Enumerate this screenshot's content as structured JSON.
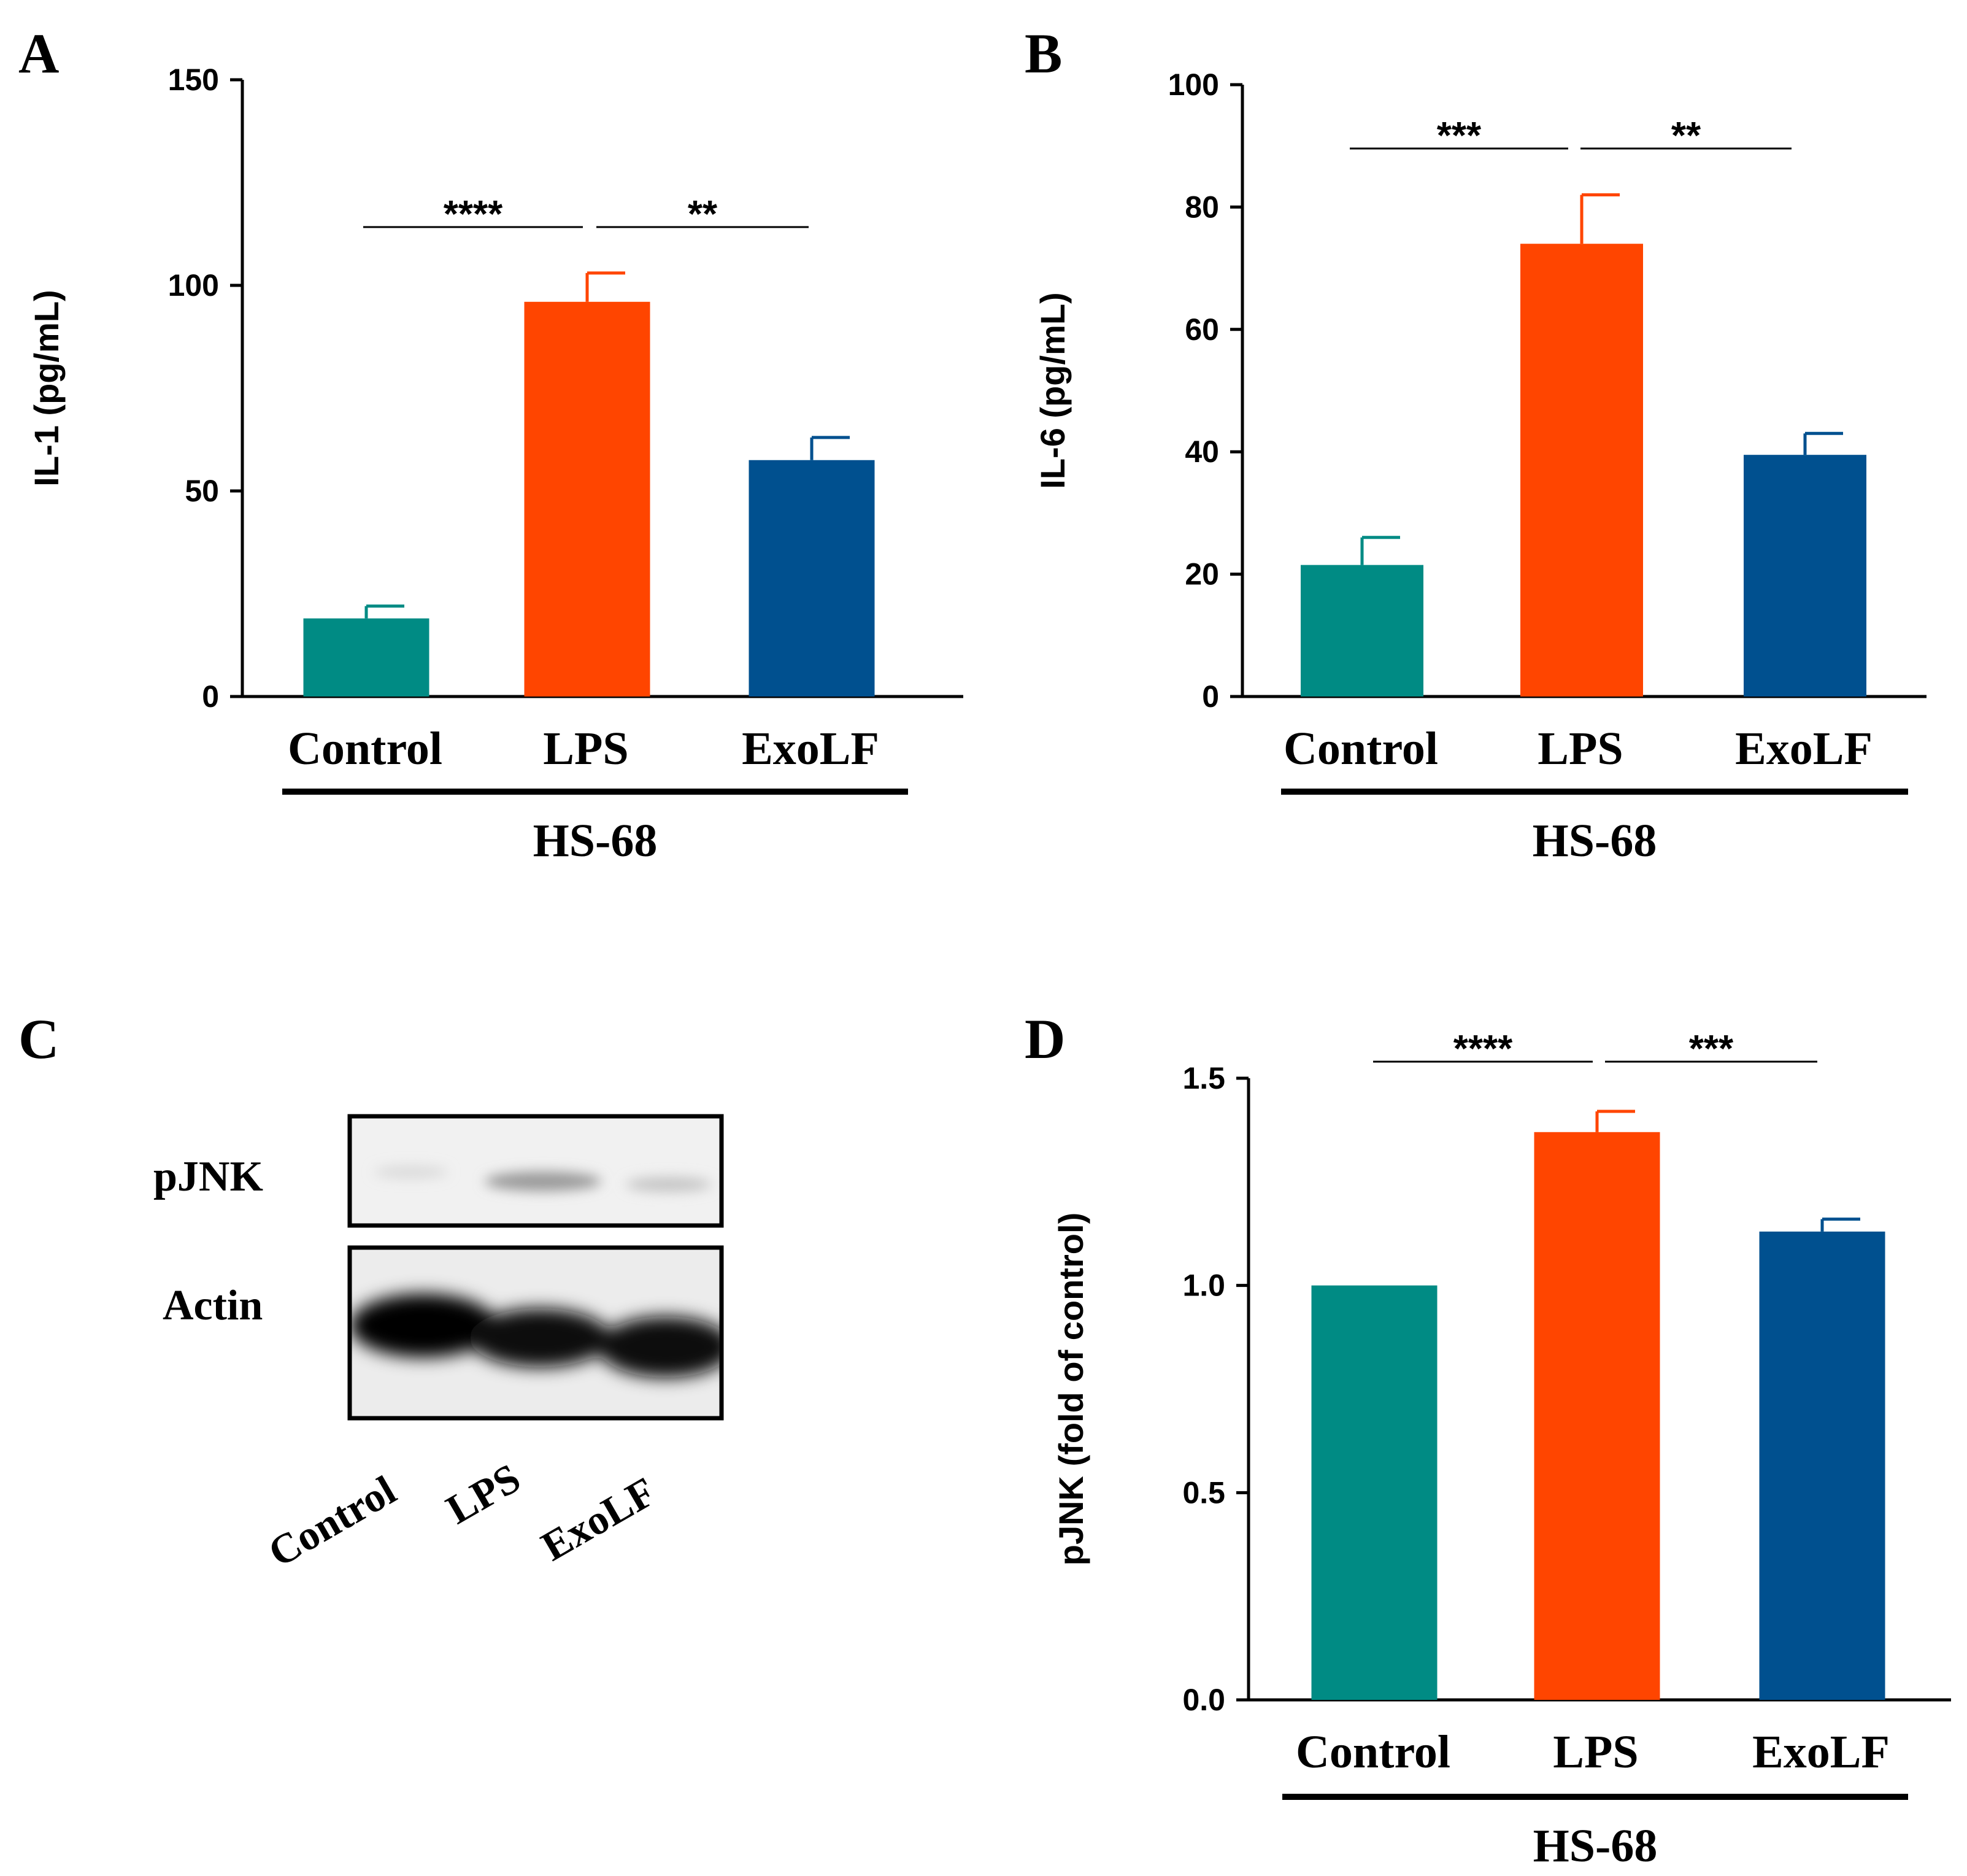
{
  "chart_data": [
    {
      "panel": "A",
      "type": "bar",
      "title": "",
      "xlabel": "",
      "ylabel": "IL-1 (pg/mL)",
      "ylim": [
        0,
        150
      ],
      "yticks": [
        0,
        50,
        100,
        150
      ],
      "categories": [
        "Control",
        "LPS",
        "ExoLF"
      ],
      "values": [
        19,
        96,
        57.5
      ],
      "errors": [
        3,
        7,
        5.5
      ],
      "colors": [
        "#008B84",
        "#FF4500",
        "#00508F"
      ],
      "group_label": "HS-68",
      "significance": [
        {
          "from": 0,
          "to": 1,
          "label": "****"
        },
        {
          "from": 1,
          "to": 2,
          "label": "**"
        }
      ]
    },
    {
      "panel": "B",
      "type": "bar",
      "title": "",
      "xlabel": "",
      "ylabel": "IL-6 (pg/mL)",
      "ylim": [
        0,
        100
      ],
      "yticks": [
        0,
        20,
        40,
        60,
        80,
        100
      ],
      "categories": [
        "Control",
        "LPS",
        "ExoLF"
      ],
      "values": [
        21.5,
        74,
        39.5
      ],
      "errors": [
        4.5,
        8,
        3.5
      ],
      "colors": [
        "#008B84",
        "#FF4500",
        "#00508F"
      ],
      "group_label": "HS-68",
      "significance": [
        {
          "from": 0,
          "to": 1,
          "label": "***"
        },
        {
          "from": 1,
          "to": 2,
          "label": "**"
        }
      ]
    },
    {
      "panel": "D",
      "type": "bar",
      "title": "",
      "xlabel": "",
      "ylabel": "pJNK (fold of control)",
      "ylim": [
        0,
        1.5
      ],
      "yticks": [
        "0.0",
        "0.5",
        "1.0",
        "1.5"
      ],
      "categories": [
        "Control",
        "LPS",
        "ExoLF"
      ],
      "values": [
        1.0,
        1.37,
        1.13
      ],
      "errors": [
        0,
        0.05,
        0.03
      ],
      "colors": [
        "#008B84",
        "#FF4500",
        "#00508F"
      ],
      "group_label": "HS-68",
      "significance": [
        {
          "from": 0,
          "to": 1,
          "label": "****"
        },
        {
          "from": 1,
          "to": 2,
          "label": "***"
        }
      ]
    }
  ],
  "blot": {
    "panel": "C",
    "bands": [
      "pJNK",
      "Actin"
    ],
    "lanes": [
      "Control",
      "LPS",
      "ExoLF"
    ]
  }
}
